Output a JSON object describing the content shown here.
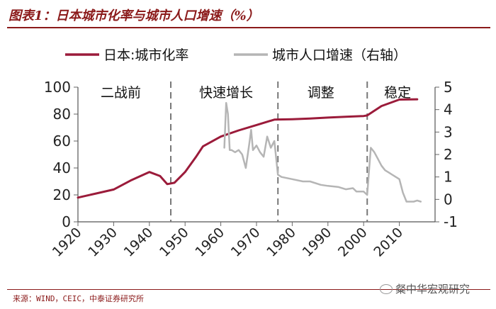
{
  "header": {
    "title": "图表1：日本城市化率与城市人口增速（%）"
  },
  "footer": {
    "source": "来源：WIND，CEIC，中泰证券研究所",
    "watermark": "粲中华宏观研究"
  },
  "colors": {
    "brand": "#8b1a1a",
    "series_primary": "#9b1b3a",
    "series_secondary": "#b5b5b5",
    "divider": "#777777"
  },
  "chart_data": {
    "type": "line",
    "legend": {
      "placement": "top",
      "entries": [
        "日本:城市化率",
        "城市人口增速（右轴）"
      ]
    },
    "x_ticks": [
      1920,
      1930,
      1940,
      1950,
      1960,
      1970,
      1980,
      1990,
      2000,
      2010
    ],
    "xlim": [
      1920,
      2020
    ],
    "y_left": {
      "range": [
        0,
        100
      ],
      "ticks": [
        0,
        20,
        40,
        60,
        80,
        100
      ]
    },
    "y_right": {
      "range": [
        -1,
        5
      ],
      "ticks": [
        -1,
        0,
        1,
        2,
        3,
        4,
        5
      ]
    },
    "phases": [
      {
        "label": "二战前",
        "center": 1932
      },
      {
        "label": "快速增长",
        "center": 1961.5
      },
      {
        "label": "调整",
        "center": 1988
      },
      {
        "label": "稳定",
        "center": 2009.5
      }
    ],
    "dividers": [
      1946,
      1976,
      2001
    ],
    "series": [
      {
        "name": "日本:城市化率",
        "axis": "left",
        "color": "#9b1b3a",
        "x": [
          1920,
          1925,
          1930,
          1935,
          1940,
          1943,
          1945,
          1947,
          1950,
          1953,
          1955,
          1960,
          1965,
          1970,
          1975,
          1976,
          1980,
          1985,
          1990,
          1995,
          2000,
          2001,
          2005,
          2010,
          2015
        ],
        "values": [
          18,
          21,
          24,
          31,
          37,
          34,
          28,
          29,
          37,
          48,
          56,
          63.3,
          67.9,
          71.9,
          75.9,
          76,
          76.2,
          76.7,
          77.4,
          78,
          78.6,
          79,
          86,
          90.8,
          91
        ]
      },
      {
        "name": "城市人口增速（右轴）",
        "axis": "right",
        "color": "#b5b5b5",
        "x": [
          1961,
          1961.5,
          1962,
          1962.5,
          1963,
          1964,
          1965,
          1966,
          1967,
          1968,
          1968.5,
          1969,
          1970,
          1971,
          1972,
          1973,
          1974,
          1975,
          1976,
          1977,
          1980,
          1983,
          1985,
          1988,
          1990,
          1993,
          1995,
          1997,
          1998,
          2000,
          2001,
          2002,
          2003,
          2004,
          2005,
          2006,
          2007,
          2008,
          2009,
          2010,
          2011,
          2012,
          2013,
          2014,
          2015,
          2016
        ],
        "values": [
          2.3,
          4.3,
          3.8,
          2.2,
          2.2,
          2.1,
          2.2,
          2.0,
          1.4,
          2.5,
          3.1,
          2.2,
          2.4,
          2.1,
          1.9,
          2.8,
          2.3,
          2.6,
          1.1,
          1.0,
          0.9,
          0.8,
          0.8,
          0.65,
          0.6,
          0.55,
          0.45,
          0.5,
          0.35,
          0.35,
          0.2,
          2.3,
          2.1,
          1.8,
          1.5,
          1.3,
          1.2,
          1.1,
          1.0,
          0.9,
          0.3,
          -0.1,
          -0.1,
          -0.1,
          -0.05,
          -0.1
        ]
      }
    ]
  }
}
